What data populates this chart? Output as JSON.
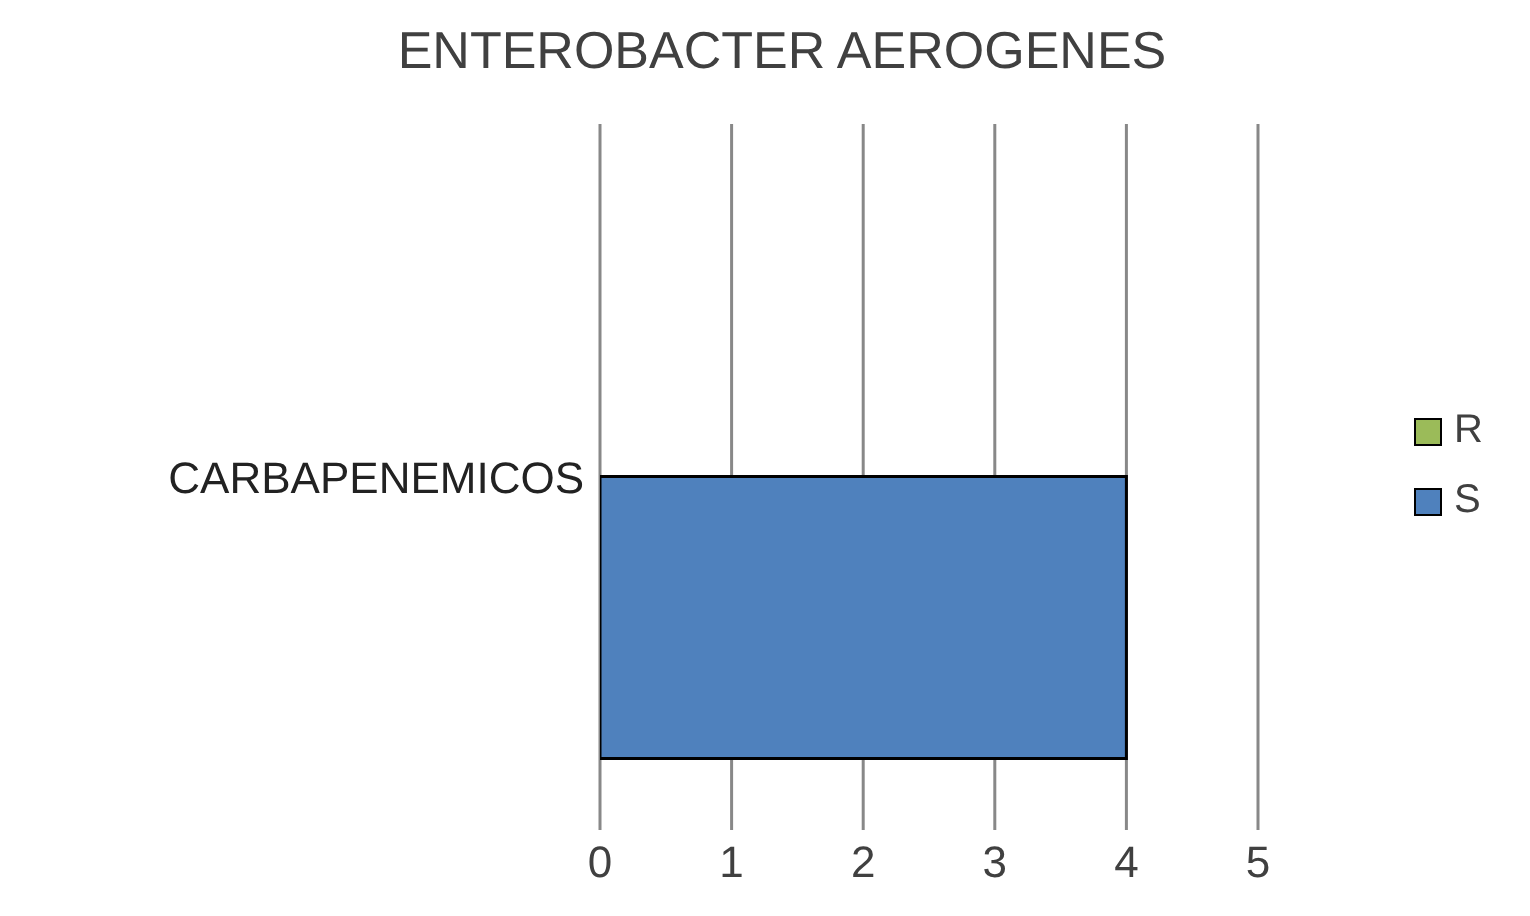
{
  "chart_data": {
    "type": "bar",
    "orientation": "horizontal",
    "title": "ENTEROBACTER AEROGENES",
    "categories": [
      "CARBAPENEMICOS"
    ],
    "series": [
      {
        "name": "R",
        "color": "#9bbb59",
        "values": [
          0
        ]
      },
      {
        "name": "S",
        "color": "#4f81bd",
        "values": [
          4
        ]
      }
    ],
    "xlim": [
      0,
      5
    ],
    "xticks": [
      0,
      1,
      2,
      3,
      4,
      5
    ],
    "grid": "x",
    "legend": "right"
  }
}
